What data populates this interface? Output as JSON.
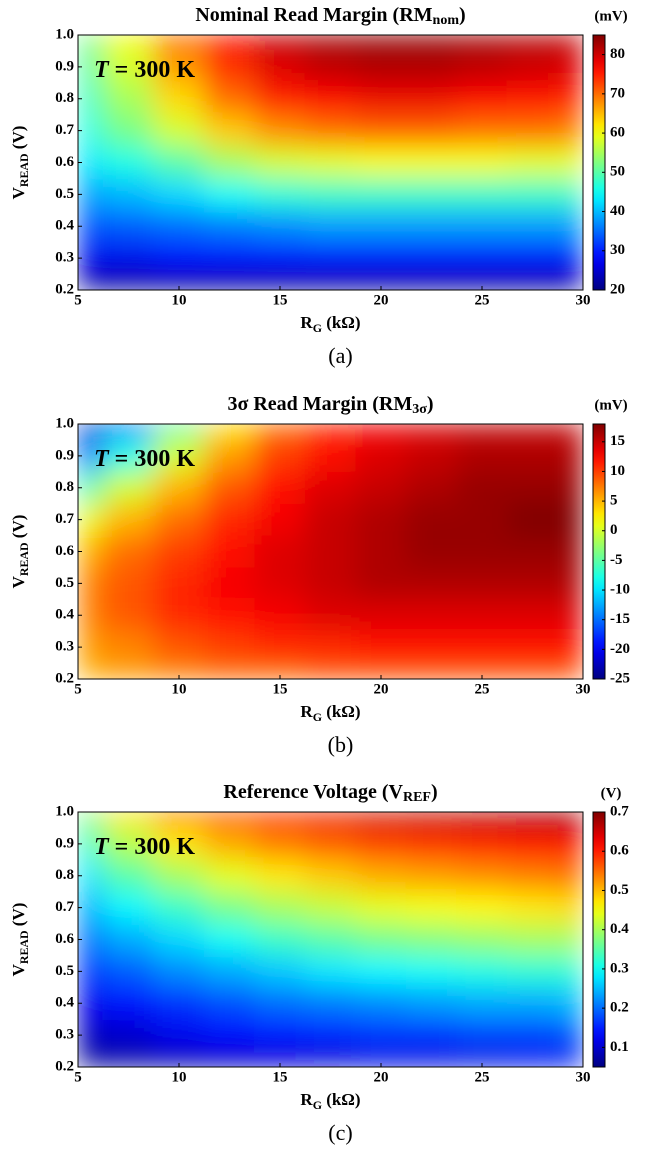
{
  "chart_data": [
    {
      "type": "heatmap",
      "colormap": "jet",
      "title": [
        "Nominal Read Margin (RM",
        "nom",
        ")"
      ],
      "x_label": [
        "R",
        "G",
        " (kΩ)"
      ],
      "y_label": [
        "V",
        "READ",
        " (V)"
      ],
      "annotation": [
        "T",
        " = 300 K"
      ],
      "panel_label": "(a)",
      "colorbar_unit": "(mV)",
      "x": [
        5,
        7.5,
        10,
        12.5,
        15,
        17.5,
        20,
        22.5,
        25,
        27.5,
        30
      ],
      "y": [
        1.0,
        0.9,
        0.8,
        0.7,
        0.6,
        0.5,
        0.4,
        0.3,
        0.2
      ],
      "z": [
        [
          52,
          60,
          70,
          77,
          81,
          83,
          84,
          84,
          83,
          82,
          81
        ],
        [
          50,
          58,
          67,
          74,
          79,
          81,
          82,
          82,
          81,
          80,
          79
        ],
        [
          48,
          55,
          63,
          70,
          75,
          77,
          78,
          78,
          77,
          76,
          75
        ],
        [
          46,
          52,
          58,
          64,
          68,
          70,
          71,
          71,
          70,
          70,
          69
        ],
        [
          43,
          46,
          50,
          55,
          58,
          59,
          60,
          60,
          60,
          59,
          59
        ],
        [
          38,
          40,
          42,
          45,
          47,
          48,
          48,
          48,
          48,
          48,
          48
        ],
        [
          33,
          34,
          35,
          36,
          37,
          38,
          38,
          38,
          38,
          38,
          38
        ],
        [
          27,
          27,
          28,
          28,
          28,
          28,
          28,
          28,
          28,
          28,
          28
        ],
        [
          21,
          21,
          21,
          21,
          21,
          21,
          21,
          21,
          21,
          21,
          21
        ]
      ],
      "xlim": [
        5,
        30
      ],
      "xticks": [
        5,
        10,
        15,
        20,
        25,
        30
      ],
      "ylim": [
        0.2,
        1.0
      ],
      "yticks": [
        0.2,
        0.3,
        0.4,
        0.5,
        0.6,
        0.7,
        0.8,
        0.9,
        {
          "value": 1.0,
          "label": "1.0"
        }
      ],
      "clim": [
        20,
        85
      ],
      "cticks": [
        20,
        30,
        40,
        50,
        60,
        70,
        80
      ]
    },
    {
      "type": "heatmap",
      "colormap": "jet",
      "title": [
        "3σ Read Margin (RM",
        "3σ",
        ")"
      ],
      "x_label": [
        "R",
        "G",
        " (kΩ)"
      ],
      "y_label": [
        "V",
        "READ",
        " (V)"
      ],
      "annotation": [
        "T",
        " = 300 K"
      ],
      "panel_label": "(b)",
      "colorbar_unit": "(mV)",
      "x": [
        5,
        7.5,
        10,
        12.5,
        15,
        17.5,
        20,
        22.5,
        25,
        27.5,
        30
      ],
      "y": [
        1.0,
        0.9,
        0.8,
        0.7,
        0.6,
        0.5,
        0.4,
        0.3,
        0.2
      ],
      "z": [
        [
          -22,
          -15,
          -5,
          3,
          8,
          11,
          13,
          14,
          15,
          15,
          15
        ],
        [
          -15,
          -8,
          0,
          6,
          10,
          12,
          14,
          15,
          16,
          16,
          16
        ],
        [
          -6,
          0,
          5,
          9,
          12,
          14,
          15,
          16,
          17,
          17,
          17
        ],
        [
          1,
          5,
          8,
          11,
          13,
          15,
          16,
          17,
          17,
          18,
          18
        ],
        [
          5,
          8,
          10,
          12,
          14,
          15,
          16,
          17,
          17,
          17,
          17
        ],
        [
          7,
          9,
          11,
          13,
          14,
          15,
          16,
          16,
          16,
          16,
          16
        ],
        [
          7,
          9,
          11,
          12,
          13,
          14,
          14,
          14,
          14,
          14,
          14
        ],
        [
          6,
          7,
          9,
          10,
          11,
          11,
          12,
          12,
          12,
          12,
          12
        ],
        [
          5,
          6,
          7,
          8,
          8,
          9,
          9,
          9,
          9,
          9,
          9
        ]
      ],
      "xlim": [
        5,
        30
      ],
      "xticks": [
        5,
        10,
        15,
        20,
        25,
        30
      ],
      "ylim": [
        0.2,
        1.0
      ],
      "yticks": [
        0.2,
        0.3,
        0.4,
        0.5,
        0.6,
        0.7,
        0.8,
        0.9,
        {
          "value": 1.0,
          "label": "1.0"
        }
      ],
      "clim": [
        -25,
        18
      ],
      "cticks": [
        -25,
        -20,
        -15,
        -10,
        -5,
        0,
        5,
        10,
        15
      ]
    },
    {
      "type": "heatmap",
      "colormap": "jet",
      "title": [
        "Reference Voltage (V",
        "REF",
        ")"
      ],
      "x_label": [
        "R",
        "G",
        " (kΩ)"
      ],
      "y_label": [
        "V",
        "READ",
        " (V)"
      ],
      "annotation": [
        "T",
        " = 300 K"
      ],
      "panel_label": "(c)",
      "colorbar_unit": "(V)",
      "x": [
        5,
        7.5,
        10,
        12.5,
        15,
        17.5,
        20,
        22.5,
        25,
        27.5,
        30
      ],
      "y": [
        1.0,
        0.9,
        0.8,
        0.7,
        0.6,
        0.5,
        0.4,
        0.3,
        0.2
      ],
      "z": [
        [
          0.38,
          0.47,
          0.54,
          0.58,
          0.61,
          0.63,
          0.65,
          0.66,
          0.67,
          0.68,
          0.69
        ],
        [
          0.33,
          0.41,
          0.47,
          0.51,
          0.54,
          0.56,
          0.58,
          0.59,
          0.6,
          0.61,
          0.62
        ],
        [
          0.28,
          0.35,
          0.4,
          0.44,
          0.47,
          0.49,
          0.51,
          0.52,
          0.53,
          0.54,
          0.55
        ],
        [
          0.24,
          0.29,
          0.33,
          0.37,
          0.4,
          0.42,
          0.44,
          0.45,
          0.46,
          0.47,
          0.48
        ],
        [
          0.2,
          0.24,
          0.27,
          0.3,
          0.33,
          0.35,
          0.37,
          0.38,
          0.39,
          0.4,
          0.4
        ],
        [
          0.16,
          0.19,
          0.22,
          0.24,
          0.26,
          0.28,
          0.29,
          0.3,
          0.31,
          0.32,
          0.32
        ],
        [
          0.12,
          0.14,
          0.16,
          0.18,
          0.2,
          0.21,
          0.22,
          0.23,
          0.24,
          0.24,
          0.25
        ],
        [
          0.09,
          0.1,
          0.12,
          0.13,
          0.14,
          0.15,
          0.16,
          0.16,
          0.17,
          0.17,
          0.18
        ],
        [
          0.06,
          0.07,
          0.08,
          0.09,
          0.1,
          0.1,
          0.11,
          0.11,
          0.11,
          0.12,
          0.12
        ]
      ],
      "xlim": [
        5,
        30
      ],
      "xticks": [
        5,
        10,
        15,
        20,
        25,
        30
      ],
      "ylim": [
        0.2,
        1.0
      ],
      "yticks": [
        0.2,
        0.3,
        0.4,
        0.5,
        0.6,
        0.7,
        0.8,
        0.9,
        {
          "value": 1.0,
          "label": "1.0"
        }
      ],
      "clim": [
        0.05,
        0.7
      ],
      "cticks": [
        0.1,
        0.2,
        0.3,
        0.4,
        0.5,
        0.6,
        0.7
      ]
    }
  ]
}
